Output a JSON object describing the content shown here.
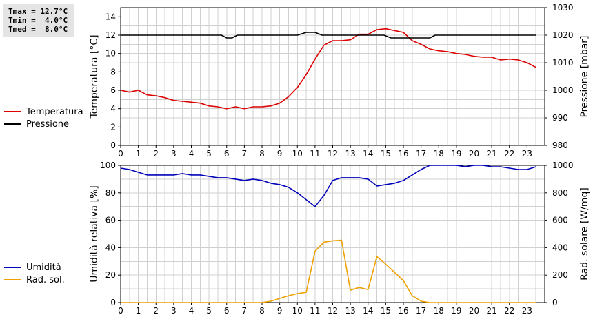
{
  "stats": {
    "tmax": "Tmax = 12.7°C",
    "tmin": "Tmin =  4.0°C",
    "tmed": "Tmed =  8.0°C"
  },
  "colors": {
    "temperature": "#dd0000",
    "pressure": "#000000",
    "humidity": "#0000bb",
    "solar": "#f0a000",
    "grid": "#d0d0d0"
  },
  "chart_data": [
    {
      "type": "line",
      "x_ticks": [
        "0",
        "1",
        "2",
        "3",
        "4",
        "5",
        "6",
        "7",
        "8",
        "9",
        "10",
        "11",
        "12",
        "13",
        "14",
        "15",
        "16",
        "17",
        "18",
        "19",
        "20",
        "21",
        "22",
        "23"
      ],
      "xlim": [
        0,
        24
      ],
      "ylabel": "Temperatura [°C]",
      "ylim": [
        0,
        15
      ],
      "y_ticks": [
        0,
        2,
        4,
        6,
        8,
        10,
        12,
        14
      ],
      "y2label": "Pressione [mbar]",
      "y2lim": [
        980,
        1030
      ],
      "y2_ticks": [
        980,
        990,
        1000,
        1010,
        1020,
        1030
      ],
      "grid": true,
      "legend_position": "left",
      "series": [
        {
          "name": "Temperatura",
          "axis": "left",
          "x": [
            0,
            0.5,
            1,
            1.5,
            2,
            2.5,
            3,
            3.5,
            4,
            4.5,
            5,
            5.5,
            6,
            6.5,
            7,
            7.5,
            8,
            8.5,
            9,
            9.5,
            10,
            10.5,
            11,
            11.5,
            12,
            12.5,
            13,
            13.5,
            14,
            14.5,
            15,
            15.5,
            16,
            16.5,
            17,
            17.5,
            18,
            18.5,
            19,
            19.5,
            20,
            20.5,
            21,
            21.5,
            22,
            22.5,
            23,
            23.5
          ],
          "values": [
            6.0,
            5.8,
            6.0,
            5.5,
            5.4,
            5.2,
            4.9,
            4.8,
            4.7,
            4.6,
            4.3,
            4.2,
            4.0,
            4.2,
            4.0,
            4.2,
            4.2,
            4.3,
            4.6,
            5.3,
            6.3,
            7.7,
            9.4,
            10.9,
            11.4,
            11.4,
            11.5,
            12.1,
            12.1,
            12.6,
            12.7,
            12.5,
            12.3,
            11.4,
            11.0,
            10.5,
            10.3,
            10.2,
            10.0,
            9.9,
            9.7,
            9.6,
            9.6,
            9.3,
            9.4,
            9.3,
            9.0,
            8.5
          ]
        },
        {
          "name": "Pressione",
          "axis": "right",
          "x": [
            0,
            5,
            5.7,
            6,
            6.3,
            6.6,
            10,
            10.5,
            11,
            11.4,
            11.8,
            14.5,
            14.9,
            15.3,
            17,
            17.5,
            17.8,
            23.5
          ],
          "values": [
            1020,
            1020,
            1020,
            1019,
            1019,
            1020,
            1020,
            1021,
            1021,
            1020,
            1020,
            1020,
            1020,
            1019,
            1019,
            1019,
            1020,
            1020
          ]
        }
      ]
    },
    {
      "type": "line",
      "x_ticks": [
        "0",
        "1",
        "2",
        "3",
        "4",
        "5",
        "6",
        "7",
        "8",
        "9",
        "10",
        "11",
        "12",
        "13",
        "14",
        "15",
        "16",
        "17",
        "18",
        "19",
        "20",
        "21",
        "22",
        "23"
      ],
      "xlim": [
        0,
        24
      ],
      "ylabel": "Umidità relativa [%]",
      "ylim": [
        0,
        100
      ],
      "y_ticks": [
        0,
        20,
        40,
        60,
        80,
        100
      ],
      "y2label": "Rad. solare [W/mq]",
      "y2lim": [
        0,
        1000
      ],
      "y2_ticks": [
        0,
        200,
        400,
        600,
        800,
        1000
      ],
      "grid": true,
      "legend_position": "left",
      "series": [
        {
          "name": "Umidità",
          "axis": "left",
          "x": [
            0,
            0.5,
            1,
            1.5,
            2,
            2.5,
            3,
            3.5,
            4,
            4.5,
            5,
            5.5,
            6,
            6.5,
            7,
            7.5,
            8,
            8.5,
            9,
            9.5,
            10,
            10.5,
            11,
            11.5,
            12,
            12.5,
            13,
            13.5,
            14,
            14.5,
            15,
            15.5,
            16,
            16.5,
            17,
            17.5,
            18,
            18.5,
            19,
            19.5,
            20,
            20.5,
            21,
            21.5,
            22,
            22.5,
            23,
            23.5
          ],
          "values": [
            98,
            97,
            95,
            93,
            93,
            93,
            93,
            94,
            93,
            93,
            92,
            91,
            91,
            90,
            89,
            90,
            89,
            87,
            86,
            84,
            80,
            75,
            70,
            78,
            89,
            91,
            91,
            91,
            90,
            85,
            86,
            87,
            89,
            93,
            97,
            100,
            100,
            100,
            100,
            99,
            100,
            100,
            99,
            99,
            98,
            97,
            97,
            99
          ]
        },
        {
          "name": "Rad. sol.",
          "axis": "right",
          "x": [
            0,
            1,
            2,
            3,
            4,
            5,
            6,
            7,
            8,
            8.5,
            9,
            9.5,
            10,
            10.5,
            11,
            11.5,
            12,
            12.5,
            13,
            13.5,
            14,
            14.5,
            15,
            15.5,
            16,
            16.5,
            17,
            17.5,
            18,
            19,
            20,
            21,
            22,
            23,
            23.5
          ],
          "values": [
            0,
            0,
            0,
            0,
            0,
            0,
            0,
            0,
            0,
            10,
            30,
            50,
            65,
            75,
            375,
            440,
            450,
            455,
            90,
            110,
            95,
            335,
            280,
            220,
            160,
            50,
            10,
            0,
            0,
            0,
            0,
            0,
            0,
            0,
            0
          ]
        }
      ]
    }
  ]
}
